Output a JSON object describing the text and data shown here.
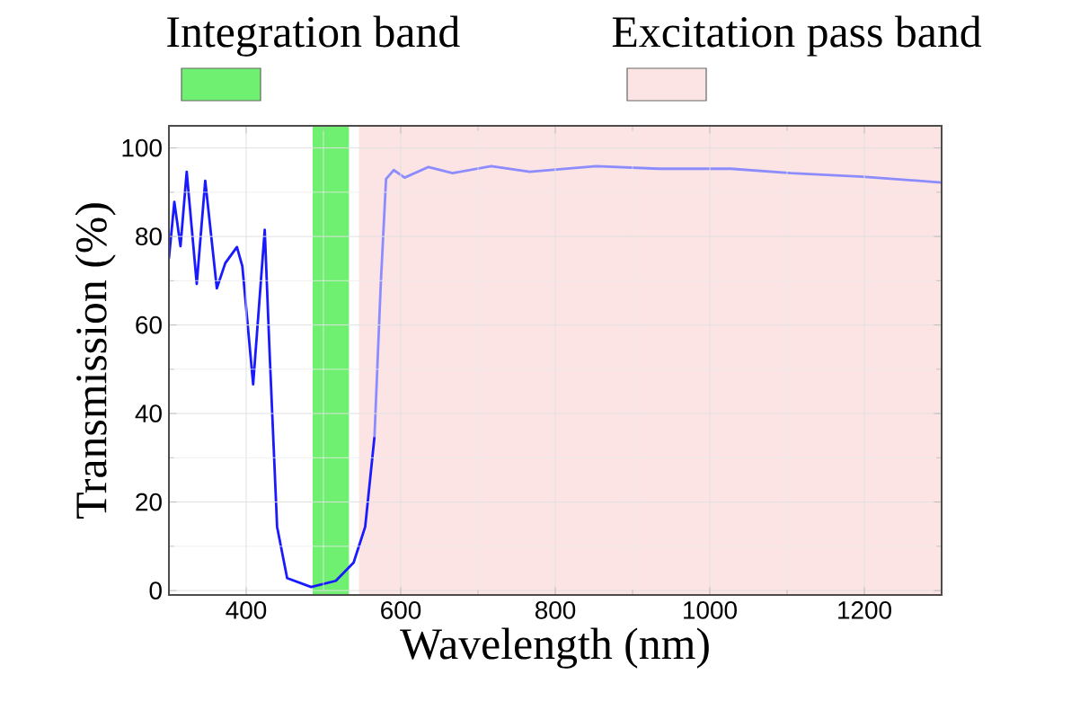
{
  "chart_data": {
    "type": "line",
    "xlabel": "Wavelength (nm)",
    "ylabel": "Transmission (%)",
    "xlim": [
      300,
      1300
    ],
    "ylim": [
      -1,
      105
    ],
    "xticks": [
      400,
      600,
      800,
      1000,
      1200
    ],
    "yticks": [
      0,
      20,
      40,
      60,
      80,
      100
    ],
    "grid": true,
    "legend": "top",
    "bands": [
      {
        "axis": "x",
        "from": 486,
        "to": 533,
        "label": "Integration band",
        "color": "#70f070"
      },
      {
        "axis": "x",
        "from": 546,
        "to": 1300,
        "label": "Excitation pass band",
        "color": "#fce4e4"
      }
    ],
    "series": [
      {
        "color": "#1a1aff",
        "x": [
          300,
          307,
          315,
          323,
          336,
          347,
          362,
          373,
          388,
          395,
          409,
          424,
          430,
          440,
          453,
          484,
          516,
          539,
          554,
          566
        ],
        "values": [
          75,
          87.8,
          77.8,
          94.6,
          69.3,
          92.6,
          68.3,
          74,
          77.6,
          73.3,
          46.6,
          81.5,
          55,
          14.4,
          2.8,
          0.8,
          2.2,
          6.3,
          14.4,
          34.7
        ]
      },
      {
        "color": "#8c8cff",
        "x": [
          566,
          574,
          581,
          591,
          605,
          636,
          667,
          717,
          767,
          853,
          934,
          1027,
          1105,
          1198,
          1300
        ],
        "values": [
          34.7,
          68.6,
          93,
          95,
          93.3,
          95.7,
          94.3,
          95.9,
          94.6,
          95.9,
          95.3,
          95.3,
          94.3,
          93.5,
          92.2
        ]
      }
    ]
  }
}
